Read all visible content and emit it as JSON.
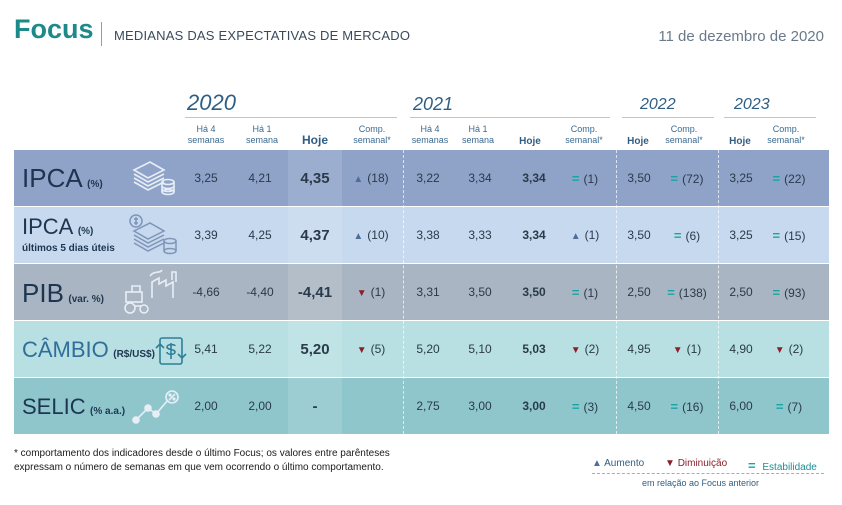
{
  "header": {
    "brand": "Focus",
    "subtitle": "MEDIANAS DAS EXPECTATIVAS DE MERCADO",
    "date": "11 de dezembro  de 2020"
  },
  "years": [
    "2020",
    "2021",
    "2022",
    "2023"
  ],
  "column_headers": {
    "ha4": "Há 4 semanas",
    "ha1": "Há 1 semana",
    "hoje": "Hoje",
    "comp": "Comp. semanal*"
  },
  "rows": [
    {
      "name": "IPCA",
      "unit": "(%)",
      "note": "",
      "c2020": {
        "ha4": "3,25",
        "ha1": "4,21",
        "hoje": "4,35",
        "comp_dir": "up",
        "comp": "(18)"
      },
      "c2021": {
        "ha4": "3,22",
        "ha1": "3,34",
        "hoje": "3,34",
        "comp_dir": "eq",
        "comp": "(1)"
      },
      "c2022": {
        "hoje": "3,50",
        "comp_dir": "eq",
        "comp": "(72)"
      },
      "c2023": {
        "hoje": "3,25",
        "comp_dir": "eq",
        "comp": "(22)"
      }
    },
    {
      "name": "IPCA",
      "unit": "(%)",
      "note": "últimos 5 dias úteis",
      "c2020": {
        "ha4": "3,39",
        "ha1": "4,25",
        "hoje": "4,37",
        "comp_dir": "up",
        "comp": "(10)"
      },
      "c2021": {
        "ha4": "3,38",
        "ha1": "3,33",
        "hoje": "3,34",
        "comp_dir": "up",
        "comp": "(1)"
      },
      "c2022": {
        "hoje": "3,50",
        "comp_dir": "eq",
        "comp": "(6)"
      },
      "c2023": {
        "hoje": "3,25",
        "comp_dir": "eq",
        "comp": "(15)"
      }
    },
    {
      "name": "PIB",
      "unit": "(var. %)",
      "note": "",
      "c2020": {
        "ha4": "-4,66",
        "ha1": "-4,40",
        "hoje": "-4,41",
        "comp_dir": "down",
        "comp": "(1)"
      },
      "c2021": {
        "ha4": "3,31",
        "ha1": "3,50",
        "hoje": "3,50",
        "comp_dir": "eq",
        "comp": "(1)"
      },
      "c2022": {
        "hoje": "2,50",
        "comp_dir": "eq",
        "comp": "(138)"
      },
      "c2023": {
        "hoje": "2,50",
        "comp_dir": "eq",
        "comp": "(93)"
      }
    },
    {
      "name": "CÂMBIO",
      "unit": "(R$/US$)",
      "note": "",
      "c2020": {
        "ha4": "5,41",
        "ha1": "5,22",
        "hoje": "5,20",
        "comp_dir": "down",
        "comp": "(5)"
      },
      "c2021": {
        "ha4": "5,20",
        "ha1": "5,10",
        "hoje": "5,03",
        "comp_dir": "down",
        "comp": "(2)"
      },
      "c2022": {
        "hoje": "4,95",
        "comp_dir": "down",
        "comp": "(1)"
      },
      "c2023": {
        "hoje": "4,90",
        "comp_dir": "down",
        "comp": "(2)"
      }
    },
    {
      "name": "SELIC",
      "unit": "(% a.a.)",
      "note": "",
      "c2020": {
        "ha4": "2,00",
        "ha1": "2,00",
        "hoje": "-",
        "comp_dir": "none",
        "comp": ""
      },
      "c2021": {
        "ha4": "2,75",
        "ha1": "3,00",
        "hoje": "3,00",
        "comp_dir": "eq",
        "comp": "(3)"
      },
      "c2022": {
        "hoje": "4,50",
        "comp_dir": "eq",
        "comp": "(16)"
      },
      "c2023": {
        "hoje": "6,00",
        "comp_dir": "eq",
        "comp": "(7)"
      }
    }
  ],
  "icons": [
    "coins-icon",
    "coins-dollar-icon",
    "factory-tractor-icon",
    "exchange-dollar-icon",
    "rising-chart-percent-icon"
  ],
  "row_colors": [
    "#8fa3c9",
    "#c6d9ee",
    "#a9b5c2",
    "#b8e0e2",
    "#8fc6cc"
  ],
  "footnote": "* comportamento dos indicadores desde o último Focus; os valores entre parênteses expressam o número de semanas em que vem ocorrendo o último comportamento.",
  "legend": {
    "aumento": "Aumento",
    "diminuicao": "Diminuição",
    "estabilidade": "Estabilidade",
    "ref": "em relação ao Focus anterior"
  }
}
